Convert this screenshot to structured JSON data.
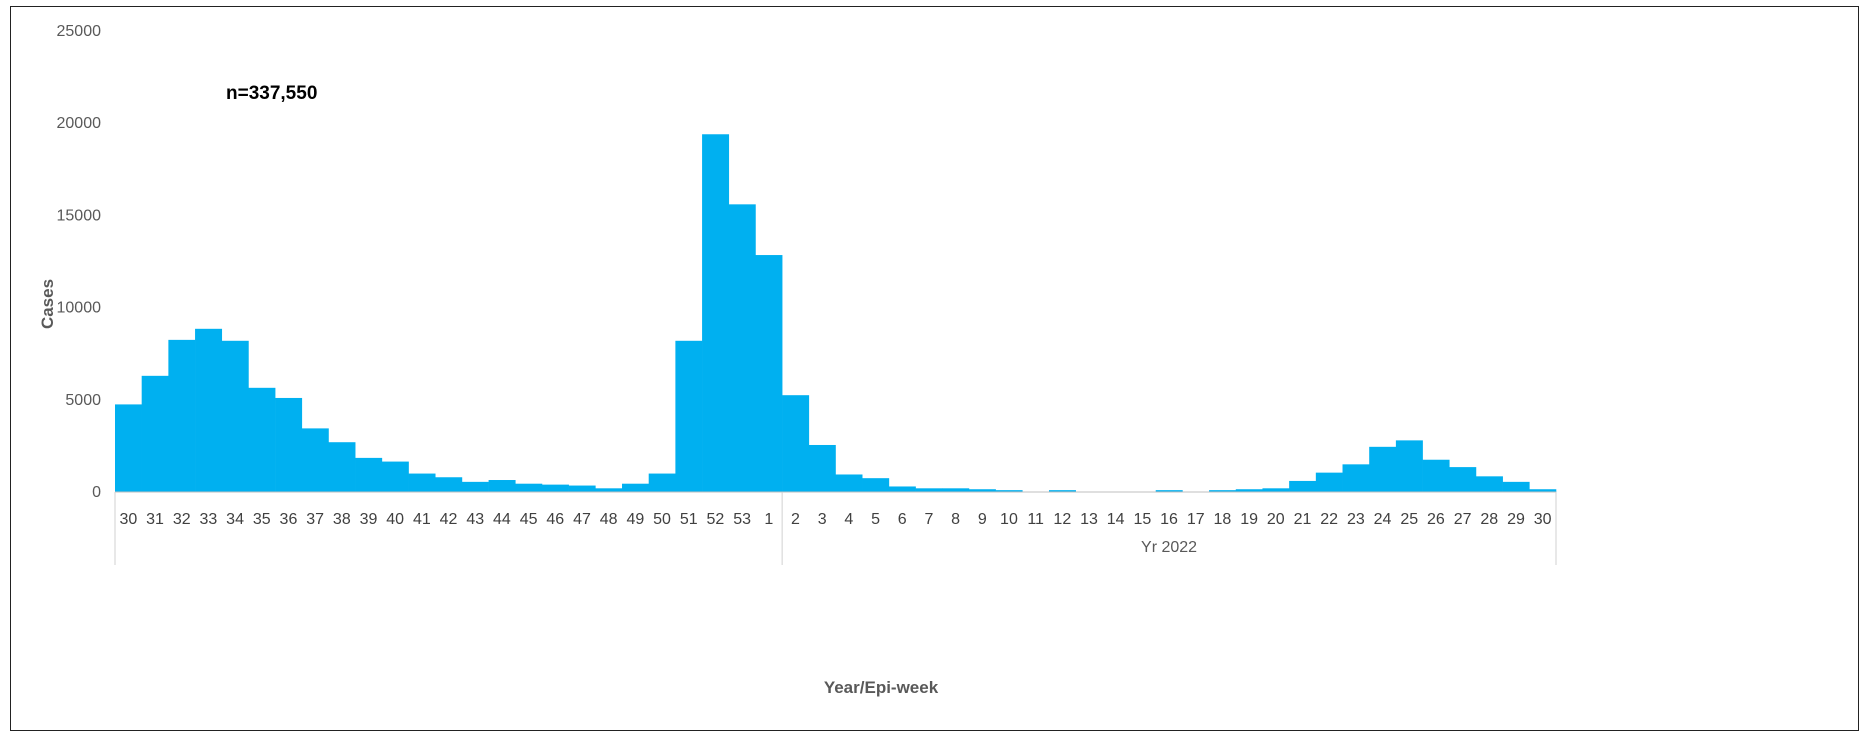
{
  "chart_data": {
    "type": "bar",
    "title": "",
    "annotation": "n=337,550",
    "xlabel": "Year/Epi-week",
    "ylabel": "Cases",
    "ylim": [
      0,
      25000
    ],
    "yticks": [
      0,
      5000,
      10000,
      15000,
      20000,
      25000
    ],
    "grid": false,
    "legend": "none",
    "bar_color": "#00B0F0",
    "group_labels": [
      {
        "label": "",
        "span": [
          0,
          24
        ]
      },
      {
        "label": "Yr 2022",
        "span": [
          25,
          53
        ]
      }
    ],
    "categories": [
      "30",
      "31",
      "32",
      "33",
      "34",
      "35",
      "36",
      "37",
      "38",
      "39",
      "40",
      "41",
      "42",
      "43",
      "44",
      "45",
      "46",
      "47",
      "48",
      "49",
      "50",
      "51",
      "52",
      "53",
      "1",
      "2",
      "3",
      "4",
      "5",
      "6",
      "7",
      "8",
      "9",
      "10",
      "11",
      "12",
      "13",
      "14",
      "15",
      "16",
      "17",
      "18",
      "19",
      "20",
      "21",
      "22",
      "23",
      "24",
      "25",
      "26",
      "27",
      "28",
      "29",
      "30"
    ],
    "values": [
      4750,
      6300,
      8250,
      8850,
      8200,
      5650,
      5100,
      3450,
      2700,
      1850,
      1650,
      1000,
      800,
      550,
      650,
      450,
      400,
      350,
      200,
      450,
      1000,
      8200,
      19400,
      15600,
      12850,
      5250,
      2550,
      950,
      750,
      300,
      200,
      200,
      150,
      100,
      0,
      100,
      0,
      0,
      0,
      100,
      0,
      100,
      150,
      200,
      600,
      1050,
      1500,
      2450,
      2800,
      1750,
      1350,
      850,
      550,
      150
    ]
  }
}
